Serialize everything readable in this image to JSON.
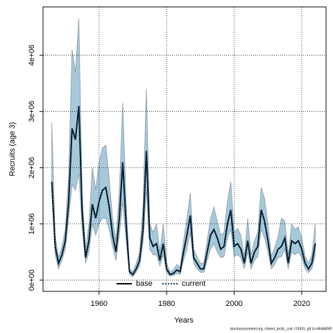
{
  "chart_data": {
    "type": "line",
    "xlabel": "Years",
    "ylabel": "Recruits (age 3)",
    "footnote": "stockassessment.org, cloned_arctic_cod, r19331, git:1cc464b806f",
    "x": [
      1946,
      1947,
      1948,
      1949,
      1950,
      1951,
      1952,
      1953,
      1954,
      1955,
      1956,
      1957,
      1958,
      1959,
      1960,
      1961,
      1962,
      1963,
      1964,
      1965,
      1966,
      1967,
      1968,
      1969,
      1970,
      1971,
      1972,
      1973,
      1974,
      1975,
      1976,
      1977,
      1978,
      1979,
      1980,
      1981,
      1982,
      1983,
      1984,
      1985,
      1986,
      1987,
      1988,
      1989,
      1990,
      1991,
      1992,
      1993,
      1994,
      1995,
      1996,
      1997,
      1998,
      1999,
      2000,
      2001,
      2002,
      2003,
      2004,
      2005,
      2006,
      2007,
      2008,
      2009,
      2010,
      2011,
      2012,
      2013,
      2014,
      2015,
      2016,
      2017,
      2018,
      2019,
      2020,
      2021,
      2022,
      2023,
      2024
    ],
    "series": [
      {
        "name": "base",
        "color": "#000000",
        "style": "solid",
        "values": [
          1750000.0,
          600000.0,
          300000.0,
          450000.0,
          700000.0,
          1400000.0,
          2700000.0,
          2500000.0,
          3100000.0,
          1200000.0,
          400000.0,
          700000.0,
          1350000.0,
          1100000.0,
          1400000.0,
          1600000.0,
          1650000.0,
          1300000.0,
          800000.0,
          500000.0,
          1100000.0,
          2100000.0,
          1000000.0,
          150000.0,
          100000.0,
          200000.0,
          350000.0,
          900000.0,
          2300000.0,
          750000.0,
          600000.0,
          650000.0,
          350000.0,
          650000.0,
          200000.0,
          100000.0,
          120000.0,
          180000.0,
          150000.0,
          500000.0,
          800000.0,
          1150000.0,
          400000.0,
          300000.0,
          200000.0,
          200000.0,
          500000.0,
          800000.0,
          900000.0,
          750000.0,
          550000.0,
          600000.0,
          1000000.0,
          1250000.0,
          600000.0,
          650000.0,
          550000.0,
          300000.0,
          700000.0,
          300000.0,
          500000.0,
          600000.0,
          1250000.0,
          1050000.0,
          700000.0,
          300000.0,
          400000.0,
          550000.0,
          600000.0,
          750000.0,
          300000.0,
          700000.0,
          650000.0,
          700000.0,
          550000.0,
          300000.0,
          200000.0,
          300000.0,
          650000.0
        ]
      },
      {
        "name": "current",
        "color": "#0b3b66",
        "style": "dotted",
        "values": [
          1750000.0,
          600000.0,
          300000.0,
          450000.0,
          700000.0,
          1400000.0,
          2700000.0,
          2500000.0,
          3100000.0,
          1200000.0,
          400000.0,
          700000.0,
          1350000.0,
          1100000.0,
          1400000.0,
          1600000.0,
          1650000.0,
          1300000.0,
          800000.0,
          500000.0,
          1100000.0,
          2100000.0,
          1000000.0,
          150000.0,
          100000.0,
          200000.0,
          350000.0,
          900000.0,
          2300000.0,
          750000.0,
          600000.0,
          650000.0,
          350000.0,
          650000.0,
          200000.0,
          100000.0,
          120000.0,
          180000.0,
          150000.0,
          500000.0,
          800000.0,
          1150000.0,
          400000.0,
          300000.0,
          200000.0,
          200000.0,
          500000.0,
          800000.0,
          900000.0,
          750000.0,
          550000.0,
          600000.0,
          1000000.0,
          1250000.0,
          600000.0,
          650000.0,
          550000.0,
          300000.0,
          700000.0,
          300000.0,
          500000.0,
          600000.0,
          1250000.0,
          1050000.0,
          700000.0,
          300000.0,
          400000.0,
          550000.0,
          600000.0,
          750000.0,
          300000.0,
          700000.0,
          650000.0,
          700000.0,
          550000.0,
          300000.0,
          200000.0,
          300000.0,
          650000.0
        ]
      }
    ],
    "band": {
      "color": "#a6c9d9",
      "lower": [
        1600000.0,
        450000.0,
        200000.0,
        350000.0,
        550000.0,
        1100000.0,
        1700000.0,
        1600000.0,
        1900000.0,
        900000.0,
        300000.0,
        500000.0,
        1000000.0,
        800000.0,
        1000000.0,
        1100000.0,
        1100000.0,
        900000.0,
        600000.0,
        350000.0,
        800000.0,
        1400000.0,
        700000.0,
        100000.0,
        60000.0,
        140000.0,
        250000.0,
        650000.0,
        1600000.0,
        550000.0,
        450000.0,
        450000.0,
        250000.0,
        450000.0,
        140000.0,
        70000.0,
        80000.0,
        120000.0,
        100000.0,
        350000.0,
        550000.0,
        850000.0,
        300000.0,
        200000.0,
        140000.0,
        140000.0,
        350000.0,
        550000.0,
        650000.0,
        500000.0,
        400000.0,
        420000.0,
        750000.0,
        900000.0,
        420000.0,
        450000.0,
        400000.0,
        200000.0,
        500000.0,
        200000.0,
        350000.0,
        420000.0,
        900000.0,
        750000.0,
        500000.0,
        200000.0,
        280000.0,
        400000.0,
        420000.0,
        550000.0,
        200000.0,
        500000.0,
        450000.0,
        500000.0,
        400000.0,
        200000.0,
        130000.0,
        200000.0,
        450000.0
      ],
      "upper": [
        2800000.0,
        800000.0,
        400000.0,
        600000.0,
        900000.0,
        1900000.0,
        4100000.0,
        3700000.0,
        4650000.0,
        1500000.0,
        550000.0,
        1000000.0,
        2000000.0,
        1600000.0,
        2100000.0,
        2350000.0,
        2400000.0,
        1800000.0,
        1100000.0,
        700000.0,
        1600000.0,
        3150000.0,
        1400000.0,
        200000.0,
        150000.0,
        300000.0,
        500000.0,
        1300000.0,
        3400000.0,
        1000000.0,
        850000.0,
        1000000.0,
        500000.0,
        1000000.0,
        300000.0,
        150000.0,
        180000.0,
        280000.0,
        220000.0,
        700000.0,
        1100000.0,
        1550000.0,
        550000.0,
        420000.0,
        300000.0,
        300000.0,
        700000.0,
        1100000.0,
        1300000.0,
        1050000.0,
        800000.0,
        850000.0,
        1400000.0,
        1750000.0,
        850000.0,
        920000.0,
        800000.0,
        420000.0,
        1100000.0,
        450000.0,
        700000.0,
        850000.0,
        1650000.0,
        1450000.0,
        1000000.0,
        420000.0,
        580000.0,
        780000.0,
        1100000.0,
        1050000.0,
        450000.0,
        1000000.0,
        900000.0,
        950000.0,
        750000.0,
        420000.0,
        300000.0,
        450000.0,
        1000000.0
      ]
    },
    "xlim": [
      1943.4,
      2027.2
    ],
    "xticks": [
      1960,
      1980,
      2000,
      2020
    ],
    "ylim": [
      -200000,
      4860000
    ],
    "yticks": [
      {
        "value": 0,
        "label": "0e+00"
      },
      {
        "value": 1000000,
        "label": "1e+06"
      },
      {
        "value": 2000000,
        "label": "2e+06"
      },
      {
        "value": 3000000,
        "label": "3e+06"
      },
      {
        "value": 4000000,
        "label": "4e+06"
      }
    ],
    "grid": true,
    "legend": "bottom"
  }
}
